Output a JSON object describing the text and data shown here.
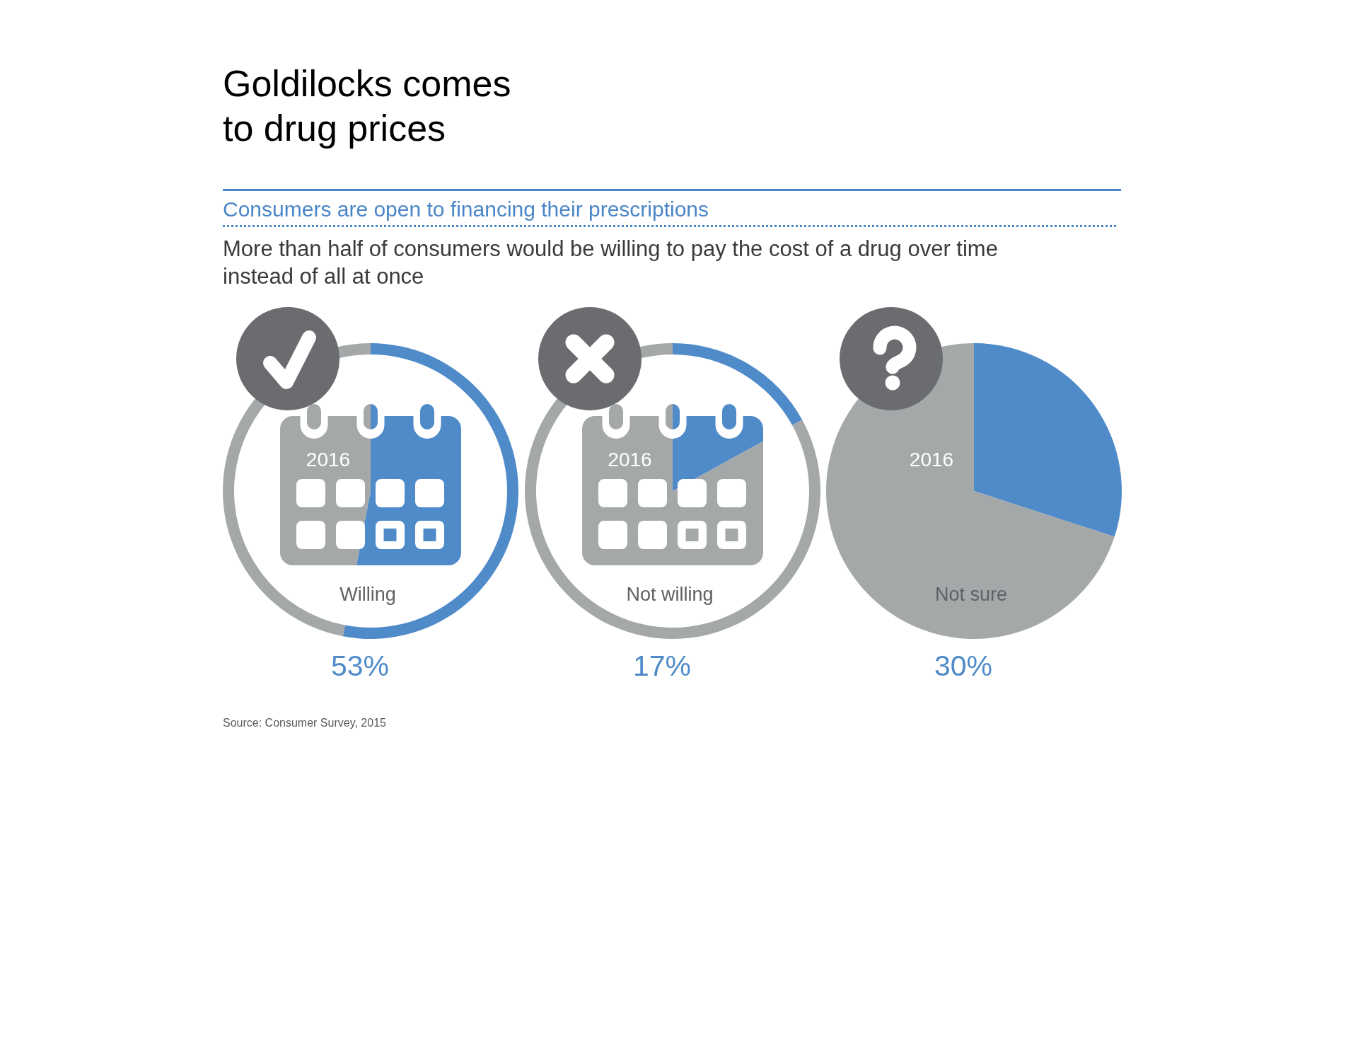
{
  "chart_data": [
    {
      "type": "other",
      "title": "Goldilocks comes to drug prices",
      "subtitle": "Consumers are open to financing their prescriptions",
      "annotations": [
        "More than half of consumers would be willing to pay the cost of a drug over time instead of all at once"
      ]
    },
    {
      "type": "donut",
      "title": "Willing",
      "categories": [
        null,
        null
      ],
      "values": [
        53,
        47
      ],
      "colors": [
        "#4f8bc9",
        "#a5a8a9"
      ],
      "annotations": [
        "2016",
        "53%"
      ]
    },
    {
      "type": "donut",
      "title": "Not willing",
      "categories": [
        null,
        null
      ],
      "values": [
        17,
        83
      ],
      "colors": [
        "#4f8bc9",
        "#a5a8a9"
      ],
      "annotations": [
        "2016",
        "17%"
      ]
    },
    {
      "type": "pie",
      "title": "Not sure",
      "categories": [
        null,
        null
      ],
      "values": [
        30,
        70
      ],
      "colors": [
        "#4f8bc9",
        "#a5a8a9"
      ],
      "annotations": [
        "2016",
        "30%"
      ]
    },
    {
      "type": "other",
      "annotations": [
        "Source: Consumer Survey, 2015"
      ]
    }
  ]
}
